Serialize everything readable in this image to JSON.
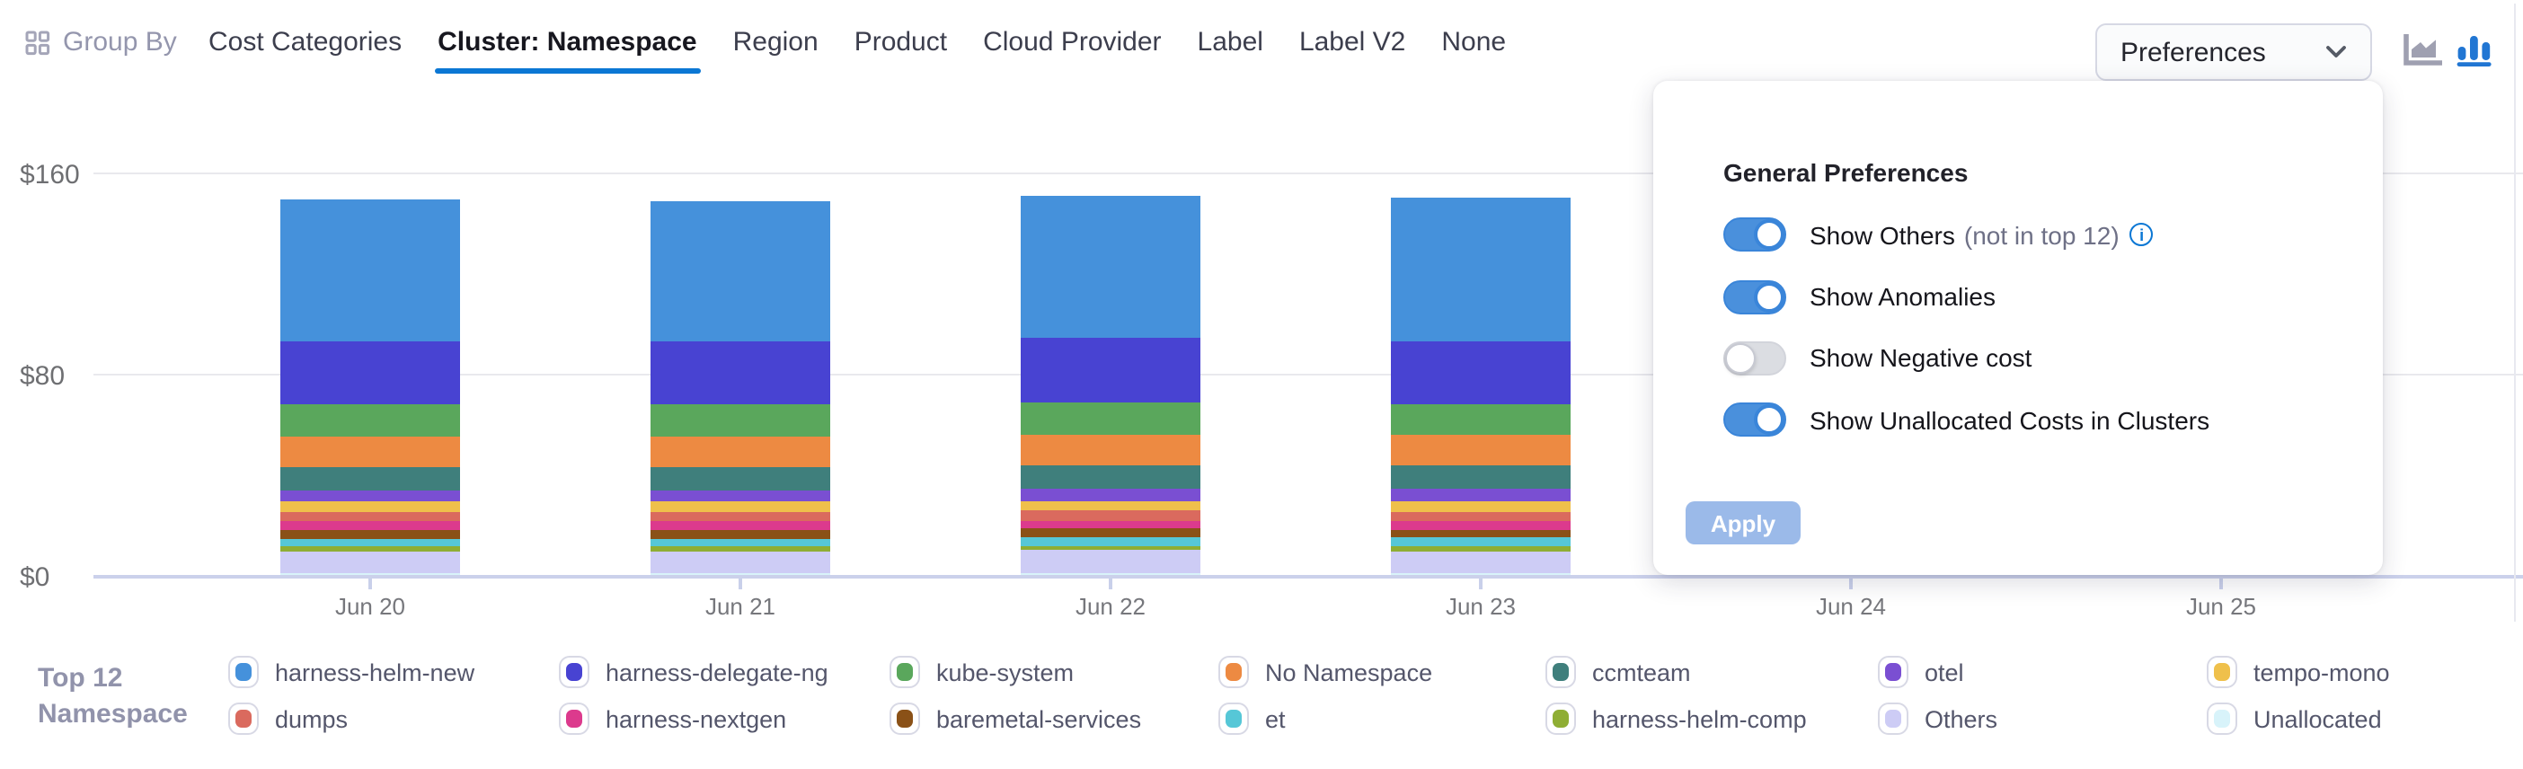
{
  "header": {
    "group_by_label": "Group By",
    "tabs": [
      {
        "label": "Cost Categories",
        "active": false
      },
      {
        "label": "Cluster: Namespace",
        "active": true
      },
      {
        "label": "Region",
        "active": false
      },
      {
        "label": "Product",
        "active": false
      },
      {
        "label": "Cloud Provider",
        "active": false
      },
      {
        "label": "Label",
        "active": false
      },
      {
        "label": "Label V2",
        "active": false
      },
      {
        "label": "None",
        "active": false
      }
    ],
    "preferences_button_label": "Preferences",
    "chart_type_toggle": {
      "area_chart_active": false,
      "bar_chart_active": true
    }
  },
  "preferences_popover": {
    "title": "General Preferences",
    "toggles": [
      {
        "label": "Show Others",
        "suffix": "(not in top 12)",
        "has_info_icon": true,
        "on": true
      },
      {
        "label": "Show Anomalies",
        "suffix": "",
        "has_info_icon": false,
        "on": true
      },
      {
        "label": "Show Negative cost",
        "suffix": "",
        "has_info_icon": false,
        "on": false
      },
      {
        "label": "Show Unallocated Costs in Clusters",
        "suffix": "",
        "has_info_icon": false,
        "on": true
      }
    ],
    "apply_button_label": "Apply",
    "apply_enabled": false
  },
  "chart_data": {
    "type": "bar",
    "stacked": true,
    "title": "",
    "xlabel": "",
    "ylabel": "",
    "categories": [
      "Jun 20",
      "Jun 21",
      "Jun 22",
      "Jun 23",
      "Jun 24",
      "Jun 25"
    ],
    "y_axis": {
      "tick_labels": [
        "$0",
        "$80",
        "$160"
      ],
      "tick_values": [
        0,
        80,
        160
      ],
      "ylim": [
        0,
        160
      ],
      "grid": true
    },
    "occlusion_note": "Bars for Jun 24 and Jun 25 are hidden behind the open preferences popover",
    "series": [
      {
        "name": "Unallocated",
        "color": "#D8F3FA",
        "values": [
          0.8,
          0.8,
          0.8,
          0.8,
          null,
          null
        ]
      },
      {
        "name": "Others",
        "color": "#CDCCF5",
        "values": [
          9.0,
          9.0,
          9.3,
          9.0,
          null,
          null
        ]
      },
      {
        "name": "harness-helm-comp",
        "color": "#8FAE34",
        "values": [
          1.9,
          1.9,
          1.9,
          2.2,
          null,
          null
        ]
      },
      {
        "name": "et",
        "color": "#56C7D7",
        "values": [
          3.2,
          3.2,
          3.4,
          3.2,
          null,
          null
        ]
      },
      {
        "name": "baremetal-services",
        "color": "#8A5117",
        "values": [
          3.2,
          3.2,
          3.2,
          3.2,
          null,
          null
        ]
      },
      {
        "name": "harness-nextgen",
        "color": "#DC3A8D",
        "values": [
          3.3,
          3.3,
          3.3,
          3.3,
          null,
          null
        ]
      },
      {
        "name": "dumps",
        "color": "#DA6A5E",
        "values": [
          3.8,
          3.8,
          3.8,
          3.8,
          null,
          null
        ]
      },
      {
        "name": "tempo-mono",
        "color": "#EFC04B",
        "values": [
          4.2,
          4.2,
          4.2,
          4.2,
          null,
          null
        ]
      },
      {
        "name": "otel",
        "color": "#7A4FD2",
        "values": [
          4.7,
          4.7,
          4.7,
          4.7,
          null,
          null
        ]
      },
      {
        "name": "ccmteam",
        "color": "#3F7F7C",
        "values": [
          9.2,
          9.2,
          9.2,
          9.2,
          null,
          null
        ]
      },
      {
        "name": "No Namespace",
        "color": "#ED8A42",
        "values": [
          12.3,
          12.3,
          12.5,
          12.3,
          null,
          null
        ]
      },
      {
        "name": "kube-system",
        "color": "#5AA75C",
        "values": [
          12.6,
          12.6,
          12.8,
          12.6,
          null,
          null
        ]
      },
      {
        "name": "harness-delegate-ng",
        "color": "#4843D2",
        "values": [
          24.9,
          24.7,
          25.2,
          24.9,
          null,
          null
        ]
      },
      {
        "name": "harness-helm-new",
        "color": "#4591DB",
        "values": [
          56.3,
          56.0,
          57.0,
          56.7,
          null,
          null
        ]
      }
    ],
    "legend_position": "bottom"
  },
  "legend": {
    "title_lines": [
      "Top 12",
      "Namespace"
    ],
    "columns": [
      [
        "harness-helm-new",
        "dumps"
      ],
      [
        "harness-delegate-ng",
        "harness-nextgen"
      ],
      [
        "kube-system",
        "baremetal-services"
      ],
      [
        "No Namespace",
        "et"
      ],
      [
        "ccmteam",
        "harness-helm-comp"
      ],
      [
        "otel",
        "Others"
      ],
      [
        "tempo-mono",
        "Unallocated"
      ]
    ]
  },
  "colors": {
    "accent_blue": "#0278D5",
    "active_tab_underline": "#0B77D4",
    "toggle_on": "#4A90DC",
    "toggle_off_track": "#DBDDE2",
    "apply_disabled_bg": "#9BBAE9",
    "axis_line": "#CBD1EB",
    "gridline": "#E9E9ED",
    "bar_chart_icon_active": "#2176D3",
    "area_chart_icon_inactive": "#9FA0B1"
  }
}
